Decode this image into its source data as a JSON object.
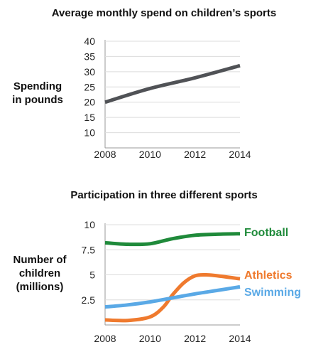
{
  "chart_data": [
    {
      "type": "line",
      "title": "Average monthly spend on children’s sports",
      "ylabel_lines": [
        "Spending",
        "in pounds"
      ],
      "xlabel": "",
      "x_ticks": [
        "2008",
        "2010",
        "2012",
        "2014"
      ],
      "y_ticks": [
        "10",
        "15",
        "20",
        "25",
        "30",
        "35",
        "40"
      ],
      "xlim": [
        2008,
        2014
      ],
      "ylim": [
        5,
        40
      ],
      "grid": "horizontal",
      "series": [
        {
          "color": "#505256",
          "x": [
            2008,
            2010,
            2012,
            2014
          ],
          "y": [
            20,
            24.5,
            28,
            32
          ]
        }
      ]
    },
    {
      "type": "line",
      "title": "Participation in three different sports",
      "ylabel_lines": [
        "Number of",
        "children",
        "(millions)"
      ],
      "xlabel": "",
      "x_ticks": [
        "2008",
        "2010",
        "2012",
        "2014"
      ],
      "y_ticks": [
        "2.5",
        "5",
        "7.5",
        "10"
      ],
      "xlim": [
        2008,
        2014
      ],
      "ylim": [
        0,
        10
      ],
      "grid": "horizontal",
      "legend_position": "right, at line ends",
      "series": [
        {
          "name": "Football",
          "color": "#1f8a3a",
          "x": [
            2008,
            2009,
            2010,
            2011,
            2012,
            2013,
            2014
          ],
          "y": [
            8.2,
            8.05,
            8.1,
            8.6,
            8.95,
            9.05,
            9.1
          ]
        },
        {
          "name": "Athletics",
          "color": "#ef7a2e",
          "x": [
            2008,
            2009,
            2010,
            2010.6,
            2011,
            2011.5,
            2012,
            2012.5,
            2013,
            2014
          ],
          "y": [
            0.5,
            0.45,
            0.8,
            1.8,
            3.0,
            4.2,
            4.9,
            5.0,
            4.9,
            4.6
          ]
        },
        {
          "name": "Swimming",
          "color": "#5aa9e6",
          "x": [
            2008,
            2009,
            2010,
            2011,
            2012,
            2013,
            2014
          ],
          "y": [
            1.8,
            2.0,
            2.3,
            2.7,
            3.1,
            3.45,
            3.8
          ]
        }
      ]
    }
  ]
}
